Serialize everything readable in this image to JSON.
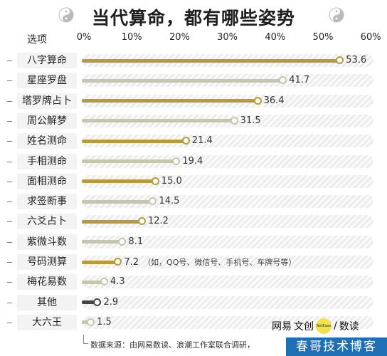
{
  "title": "当代算命，都有哪些姿势",
  "column_header": "选项",
  "brand": {
    "left": "网易",
    "mid": "文创",
    "dot": "NetEase",
    "right": "数读"
  },
  "source": "数据来源：由网易数读、浪潮工作室联合调研，",
  "watermark": "春哥技术博客",
  "colors": {
    "gold": "#b89a3a",
    "sage": "#c6c6ab",
    "dark": "#444444"
  },
  "chart_data": {
    "type": "bar",
    "orientation": "horizontal",
    "title": "当代算命，都有哪些姿势",
    "xlabel": "",
    "ylabel": "选项",
    "xlim": [
      0,
      60
    ],
    "x_ticks": [
      "0%",
      "10%",
      "20%",
      "30%",
      "40%",
      "50%",
      "60%"
    ],
    "categories": [
      "八字算命",
      "星座罗盘",
      "塔罗牌占卜",
      "周公解梦",
      "姓名测命",
      "手相测命",
      "面相测命",
      "求签断事",
      "六爻占卜",
      "紫微斗数",
      "号码测算",
      "梅花易数",
      "其他",
      "大六王"
    ],
    "values": [
      53.6,
      41.7,
      36.4,
      31.5,
      21.4,
      19.4,
      15.0,
      14.5,
      12.2,
      8.1,
      7.2,
      4.3,
      2.9,
      1.5
    ],
    "value_labels": [
      "53.6",
      "41.7",
      "36.4",
      "31.5",
      "21.4",
      "19.4",
      "15.0",
      "14.5",
      "12.2",
      "8.1",
      "7.2",
      "4.3",
      "2.9",
      "1.5"
    ],
    "annotations": [
      {
        "category": "号码测算",
        "text": "（如，QQ号、微信号、手机号、车牌号等）"
      }
    ],
    "bar_colors": [
      "gold",
      "sage",
      "gold",
      "sage",
      "gold",
      "sage",
      "gold",
      "sage",
      "gold",
      "sage",
      "gold",
      "sage",
      "dark",
      "sage"
    ]
  }
}
